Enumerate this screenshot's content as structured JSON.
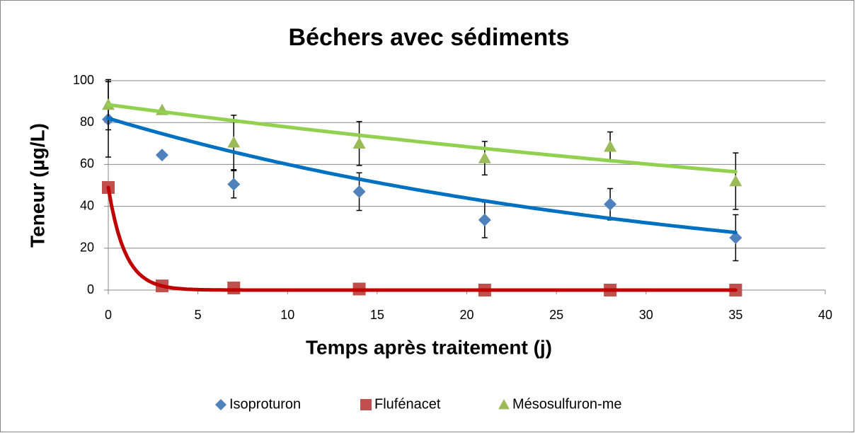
{
  "chart_data": {
    "type": "scatter",
    "title": "Béchers avec sédiments",
    "x_label": "Temps  après traitement (j)",
    "y_label": "Teneur (µg/L)",
    "xlim": [
      0,
      40
    ],
    "xticks": [
      0,
      5,
      10,
      15,
      20,
      25,
      30,
      35,
      40
    ],
    "ylim": [
      0,
      100
    ],
    "yticks": [
      0,
      20,
      40,
      60,
      80,
      100
    ],
    "grid": true,
    "legend": "bottom",
    "x": [
      0,
      3,
      7,
      14,
      21,
      28,
      35
    ],
    "series": [
      {
        "name": "Isoproturon",
        "color": "#4f81bd",
        "marker": "diamond",
        "line_color": "#0070c0",
        "values": [
          81.5,
          64.5,
          50.5,
          47,
          33.5,
          41,
          25
        ],
        "errors": [
          18,
          null,
          6.5,
          9,
          8.5,
          7.5,
          11
        ],
        "fit": {
          "a": 82,
          "k": 0.0312
        }
      },
      {
        "name": "Flufénacet",
        "color": "#c0504d",
        "marker": "square",
        "line_color": "#c00000",
        "values": [
          49,
          2,
          1,
          0.5,
          0,
          0,
          0
        ],
        "errors": [
          null,
          null,
          null,
          null,
          null,
          null,
          null
        ],
        "fit": {
          "a": 49,
          "k": 1.07
        }
      },
      {
        "name": "Mésosulfuron-me",
        "color": "#9bbb59",
        "marker": "triangle",
        "line_color": "#92d050",
        "values": [
          88.5,
          86,
          70.5,
          70,
          63,
          68.5,
          52
        ],
        "errors": [
          12,
          null,
          13,
          10.5,
          8,
          7,
          13.5
        ],
        "fit": {
          "a": 88.5,
          "k": 0.01283
        }
      }
    ]
  }
}
